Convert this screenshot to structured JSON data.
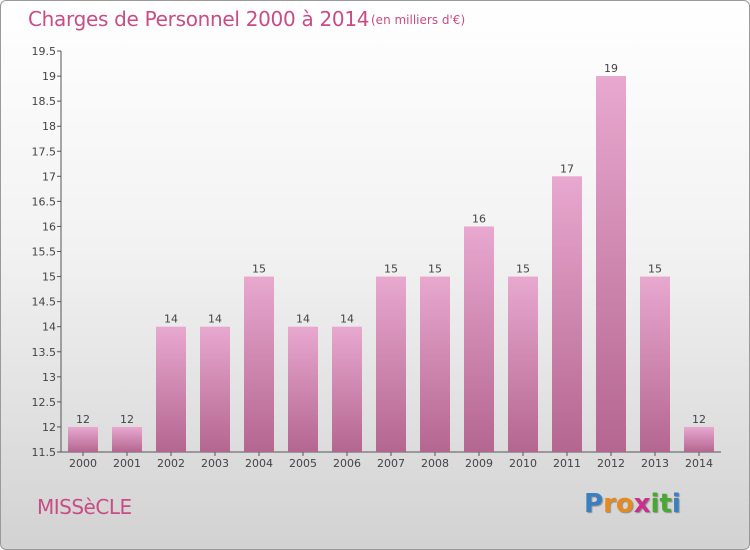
{
  "header": {
    "title": "Charges de Personnel 2000 à 2014",
    "subtitle": "(en milliers d'€)"
  },
  "footer": {
    "commune": "MISSèCLE",
    "logo_letters": [
      "P",
      "r",
      "o",
      "x",
      "i",
      "t",
      "i"
    ],
    "logo_colors": [
      "#3a7fc2",
      "#e58a1f",
      "#e58a1f",
      "#c8308a",
      "#4aa832",
      "#4aa832",
      "#3a7fc2"
    ]
  },
  "chart_data": {
    "type": "bar",
    "title": "Charges de Personnel 2000 à 2014",
    "subtitle": "(en milliers d'€)",
    "categories": [
      "2000",
      "2001",
      "2002",
      "2003",
      "2004",
      "2005",
      "2006",
      "2007",
      "2008",
      "2009",
      "2010",
      "2011",
      "2012",
      "2013",
      "2014"
    ],
    "values": [
      12,
      12,
      14,
      14,
      15,
      14,
      14,
      15,
      15,
      16,
      15,
      17,
      19,
      15,
      12
    ],
    "data_labels": [
      "12",
      "12",
      "14",
      "14",
      "15",
      "14",
      "14",
      "15",
      "15",
      "16",
      "15",
      "17",
      "19",
      "15",
      "12"
    ],
    "ylim": [
      11.5,
      19.5
    ],
    "y_ticks": [
      "11.5",
      "12",
      "12.5",
      "13",
      "13.5",
      "14",
      "14.5",
      "15",
      "15.5",
      "16",
      "16.5",
      "17",
      "17.5",
      "18",
      "18.5",
      "19",
      "19.5"
    ],
    "grid": false,
    "colors": {
      "bar_top": "#e8a8cf",
      "bar_bottom": "#b46690",
      "axis": "#555555"
    }
  }
}
